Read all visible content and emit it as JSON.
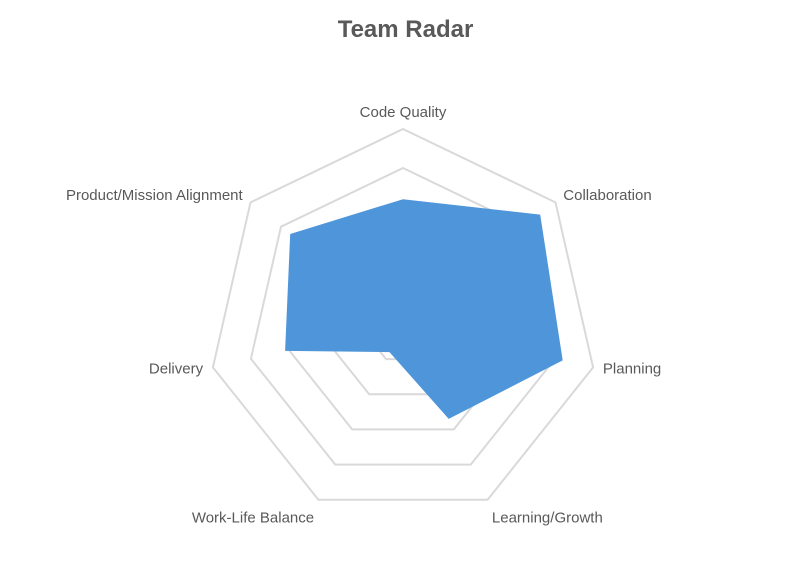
{
  "chart_data": {
    "type": "radar",
    "title": "Team Radar",
    "categories": [
      "Code Quality",
      "Collaboration",
      "Planning",
      "Learning/Growth",
      "Work-Life Balance",
      "Delivery",
      "Product/Mission Alignment"
    ],
    "series": [
      {
        "values": [
          3.2,
          4.5,
          4.2,
          2.7,
          0.8,
          3.1,
          3.7
        ]
      }
    ],
    "rlim": [
      0,
      5
    ],
    "gridlines": [
      1,
      2,
      3,
      4,
      5
    ],
    "legend": "none",
    "colors": {
      "fill": "#4f95da",
      "grid": "#d9d9d9",
      "text": "#595959"
    }
  }
}
